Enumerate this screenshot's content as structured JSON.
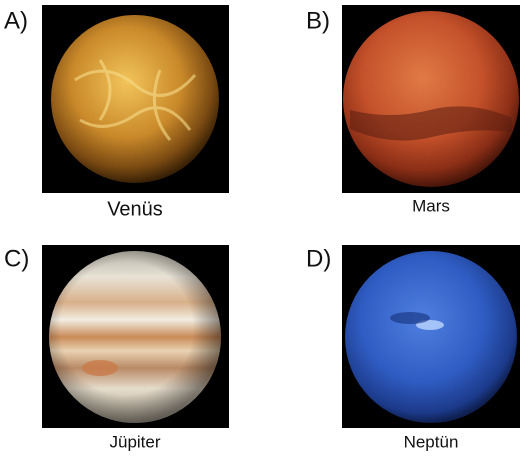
{
  "panels": [
    {
      "label": "A)",
      "caption": "Venüs"
    },
    {
      "label": "B)",
      "caption": "Mars"
    },
    {
      "label": "C)",
      "caption": "Jüpiter"
    },
    {
      "label": "D)",
      "caption": "Neptün"
    }
  ]
}
